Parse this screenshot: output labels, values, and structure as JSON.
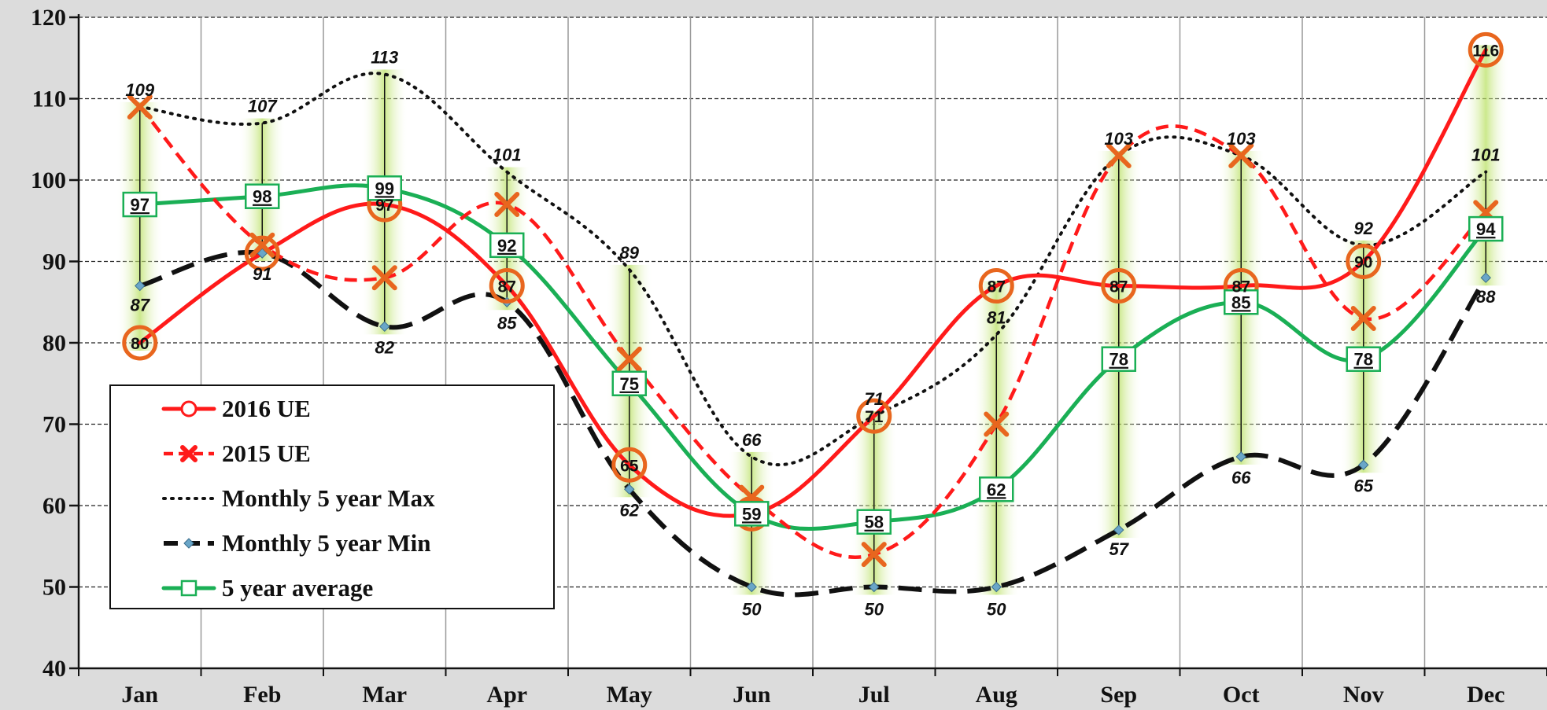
{
  "chart_data": {
    "type": "line",
    "categories": [
      "Jan",
      "Feb",
      "Mar",
      "Apr",
      "May",
      "Jun",
      "Jul",
      "Aug",
      "Sep",
      "Oct",
      "Nov",
      "Dec"
    ],
    "ylim": [
      40,
      120
    ],
    "yticks": [
      40,
      50,
      60,
      70,
      80,
      90,
      100,
      110,
      120
    ],
    "ytick_labels": [
      "40",
      "50",
      "60",
      "70",
      "80",
      "90",
      "100",
      "110",
      "120"
    ],
    "grid": true,
    "legend_position": "lower-left",
    "colors": {
      "ue2016": "#ff1a1a",
      "ue2015": "#ff1a1a",
      "ue2015_marker": "#e8661e",
      "max": "#111111",
      "min": "#111111",
      "min_marker": "#6aa6c8",
      "avg": "#1aaf55",
      "band": "#b8e060",
      "plot_bg": "#ffffff",
      "page_bg": "#dcdcdc"
    },
    "series": [
      {
        "key": "ue2016",
        "name": "2016 UE",
        "style": "solid",
        "marker": "circle",
        "values": [
          80,
          91,
          97,
          87,
          65,
          59,
          71,
          87,
          87,
          87,
          90,
          116
        ],
        "labels": [
          "80",
          "",
          "97",
          "87",
          "65",
          "",
          "71",
          "87",
          "87",
          "87",
          "90",
          "116"
        ]
      },
      {
        "key": "ue2015",
        "name": "2015 UE",
        "style": "dashed",
        "marker": "x",
        "values": [
          109,
          92,
          88,
          97,
          78,
          61,
          54,
          70,
          103,
          103,
          83,
          96
        ]
      },
      {
        "key": "max",
        "name": "Monthly 5 year Max",
        "style": "dotted",
        "marker": "none",
        "values": [
          109,
          107,
          113,
          101,
          89,
          66,
          71,
          81,
          103,
          103,
          92,
          101
        ],
        "labels": [
          "109",
          "107",
          "113",
          "101",
          "89",
          "66",
          "71",
          "81",
          "103",
          "103",
          "92",
          "101"
        ]
      },
      {
        "key": "min",
        "name": "Monthly 5 year Min",
        "style": "long-dash",
        "marker": "diamond",
        "values": [
          87,
          91,
          82,
          85,
          62,
          50,
          50,
          50,
          57,
          66,
          65,
          88
        ],
        "labels": [
          "87",
          "91",
          "82",
          "85",
          "62",
          "50",
          "50",
          "50",
          "57",
          "66",
          "65",
          "88"
        ]
      },
      {
        "key": "avg",
        "name": "5 year average",
        "style": "solid",
        "marker": "square",
        "values": [
          97,
          98,
          99,
          92,
          75,
          59,
          58,
          62,
          78,
          85,
          78,
          94
        ],
        "labels": [
          "97",
          "98",
          "99",
          "92",
          "75",
          "59",
          "58",
          "62",
          "78",
          "85",
          "78",
          "94"
        ]
      }
    ]
  }
}
